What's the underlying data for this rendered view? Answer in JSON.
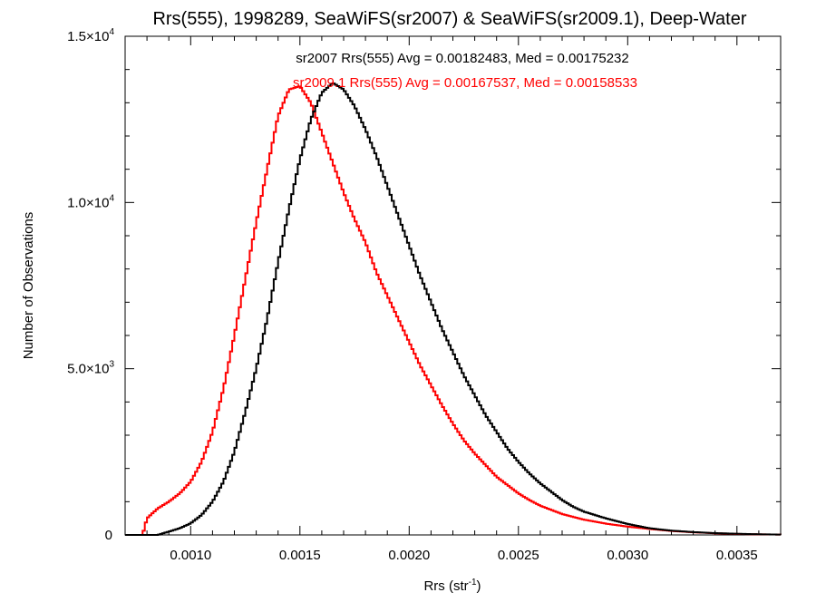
{
  "chart_data": {
    "type": "line",
    "title": "Rrs(555), 1998289, SeaWiFS(sr2007) & SeaWiFS(sr2009.1), Deep-Water",
    "xlabel": "Rrs (str",
    "xlabel_sup": "-1",
    "xlabel_end": ")",
    "ylabel": "Number of Observations",
    "xlim": [
      0.0007,
      0.0037
    ],
    "ylim": [
      0,
      15000
    ],
    "x_ticks": [
      {
        "value": 0.001,
        "label": "0.0010"
      },
      {
        "value": 0.0015,
        "label": "0.0015"
      },
      {
        "value": 0.002,
        "label": "0.0020"
      },
      {
        "value": 0.0025,
        "label": "0.0025"
      },
      {
        "value": 0.003,
        "label": "0.0030"
      },
      {
        "value": 0.0035,
        "label": "0.0035"
      }
    ],
    "y_ticks": [
      {
        "value": 0,
        "mant": "0",
        "exp": ""
      },
      {
        "value": 5000,
        "mant": "5.0×10",
        "exp": "3"
      },
      {
        "value": 10000,
        "mant": "1.0×10",
        "exp": "4"
      },
      {
        "value": 15000,
        "mant": "1.5×10",
        "exp": "4"
      }
    ],
    "grid": false,
    "series": [
      {
        "name": "sr2007",
        "color": "#000000",
        "annotation": "sr2007 Rrs(555) Avg = 0.00182483, Med = 0.00175232",
        "x": [
          0.00085,
          0.0009,
          0.00095,
          0.001,
          0.00105,
          0.0011,
          0.00115,
          0.0012,
          0.00125,
          0.0013,
          0.00135,
          0.0014,
          0.00145,
          0.0015,
          0.00155,
          0.0016,
          0.00165,
          0.0017,
          0.00175,
          0.0018,
          0.00185,
          0.0019,
          0.00195,
          0.002,
          0.00205,
          0.0021,
          0.00215,
          0.0022,
          0.00225,
          0.0023,
          0.00235,
          0.0024,
          0.00245,
          0.0025,
          0.00255,
          0.0026,
          0.00265,
          0.0027,
          0.00275,
          0.0028,
          0.0029,
          0.003,
          0.0031,
          0.0032,
          0.0033,
          0.0034,
          0.0035,
          0.0036,
          0.0037
        ],
        "y": [
          0,
          100,
          200,
          350,
          600,
          1000,
          1600,
          2500,
          3700,
          5000,
          6500,
          8200,
          9800,
          11300,
          12500,
          13300,
          13600,
          13400,
          12900,
          12200,
          11400,
          10500,
          9600,
          8700,
          7800,
          7000,
          6200,
          5500,
          4800,
          4200,
          3600,
          3100,
          2600,
          2200,
          1850,
          1550,
          1300,
          1050,
          850,
          700,
          500,
          330,
          200,
          130,
          85,
          55,
          35,
          20,
          10
        ]
      },
      {
        "name": "sr2009.1",
        "color": "#ff0000",
        "annotation": "sr2009.1 Rrs(555) Avg = 0.00167537, Med = 0.00158533",
        "x": [
          0.00078,
          0.0008,
          0.00085,
          0.0009,
          0.00095,
          0.001,
          0.00105,
          0.0011,
          0.00115,
          0.0012,
          0.00125,
          0.0013,
          0.00135,
          0.0014,
          0.00145,
          0.0015,
          0.00155,
          0.0016,
          0.00165,
          0.0017,
          0.00175,
          0.0018,
          0.00185,
          0.0019,
          0.00195,
          0.002,
          0.00205,
          0.0021,
          0.00215,
          0.0022,
          0.00225,
          0.0023,
          0.00235,
          0.0024,
          0.00245,
          0.0025,
          0.00255,
          0.0026,
          0.0027,
          0.0028,
          0.0029,
          0.003,
          0.0031,
          0.0032,
          0.0033,
          0.0034,
          0.0035,
          0.0036,
          0.0037
        ],
        "y": [
          0,
          500,
          800,
          1000,
          1250,
          1600,
          2200,
          3100,
          4400,
          6000,
          7700,
          9400,
          11000,
          12600,
          13400,
          13500,
          13000,
          12100,
          11200,
          10300,
          9500,
          8800,
          7900,
          7200,
          6500,
          5800,
          5100,
          4500,
          3900,
          3350,
          2850,
          2450,
          2100,
          1750,
          1500,
          1250,
          1050,
          880,
          630,
          460,
          340,
          250,
          180,
          120,
          80,
          50,
          30,
          18,
          10
        ]
      }
    ]
  }
}
